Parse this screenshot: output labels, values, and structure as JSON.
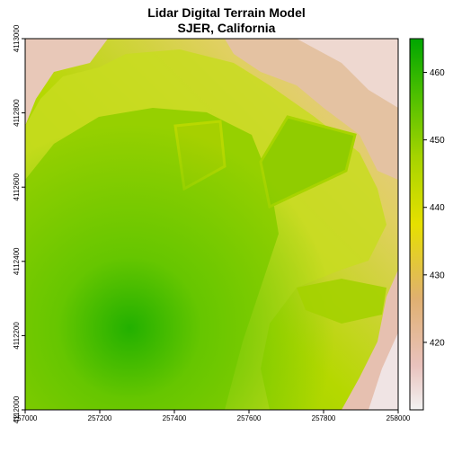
{
  "title": "Lidar Digital Terrain Model",
  "subtitle": "SJER, California",
  "chart_data": {
    "type": "heatmap",
    "title": "Lidar Digital Terrain Model",
    "subtitle": "SJER, California",
    "x_ticks": [
      "257000",
      "257200",
      "257400",
      "257600",
      "257800",
      "258000"
    ],
    "y_ticks": [
      "4112000",
      "4112200",
      "4112400",
      "4112600",
      "4112800",
      "4113000"
    ],
    "xlim": [
      257000,
      258000
    ],
    "ylim": [
      4112000,
      4113000
    ],
    "legend": {
      "position": "right",
      "min": 410,
      "max": 465,
      "ticks": [
        "420",
        "430",
        "440",
        "450",
        "460"
      ],
      "colors": [
        "#f2f2f2",
        "#e8b8a6",
        "#e6c97a",
        "#e6e600",
        "#9bd400",
        "#3fbf00",
        "#00a600"
      ]
    }
  }
}
